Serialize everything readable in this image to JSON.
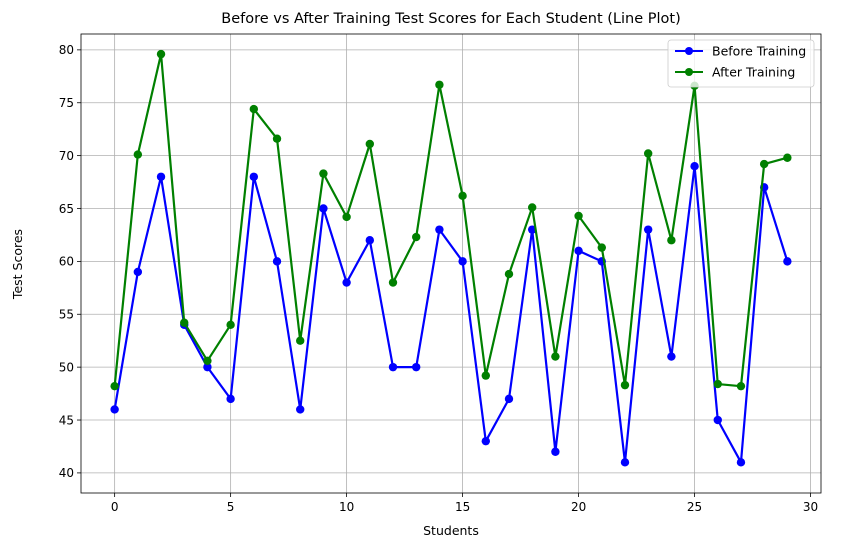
{
  "chart_data": {
    "type": "line",
    "title": "Before vs After Training Test Scores for Each Student (Line Plot)",
    "xlabel": "Students",
    "ylabel": "Test Scores",
    "xlim": [
      -1.45,
      30.45
    ],
    "ylim": [
      38.1,
      81.5
    ],
    "xticks": [
      0,
      5,
      10,
      15,
      20,
      25,
      30
    ],
    "yticks": [
      40,
      45,
      50,
      55,
      60,
      65,
      70,
      75,
      80
    ],
    "grid": true,
    "legend_position": "top-right",
    "x": [
      0,
      1,
      2,
      3,
      4,
      5,
      6,
      7,
      8,
      9,
      10,
      11,
      12,
      13,
      14,
      15,
      16,
      17,
      18,
      19,
      20,
      21,
      22,
      23,
      24,
      25,
      26,
      27,
      28,
      29
    ],
    "series": [
      {
        "name": "Before Training",
        "color": "#0000ff",
        "values": [
          46,
          59,
          68,
          54,
          50,
          47,
          68,
          60,
          46,
          65,
          58,
          62,
          50,
          50,
          63,
          60,
          43,
          47,
          63,
          42,
          61,
          60,
          41,
          63,
          51,
          69,
          45,
          41,
          67,
          60
        ]
      },
      {
        "name": "After Training",
        "color": "#008000",
        "values": [
          48.2,
          70.1,
          79.6,
          54.2,
          50.6,
          54.0,
          74.4,
          71.6,
          52.5,
          68.3,
          64.2,
          71.1,
          58.0,
          62.3,
          76.7,
          66.2,
          49.2,
          58.8,
          65.1,
          51.0,
          64.3,
          61.3,
          48.3,
          70.2,
          62.0,
          76.6,
          48.4,
          48.2,
          69.2,
          69.8
        ]
      }
    ]
  }
}
